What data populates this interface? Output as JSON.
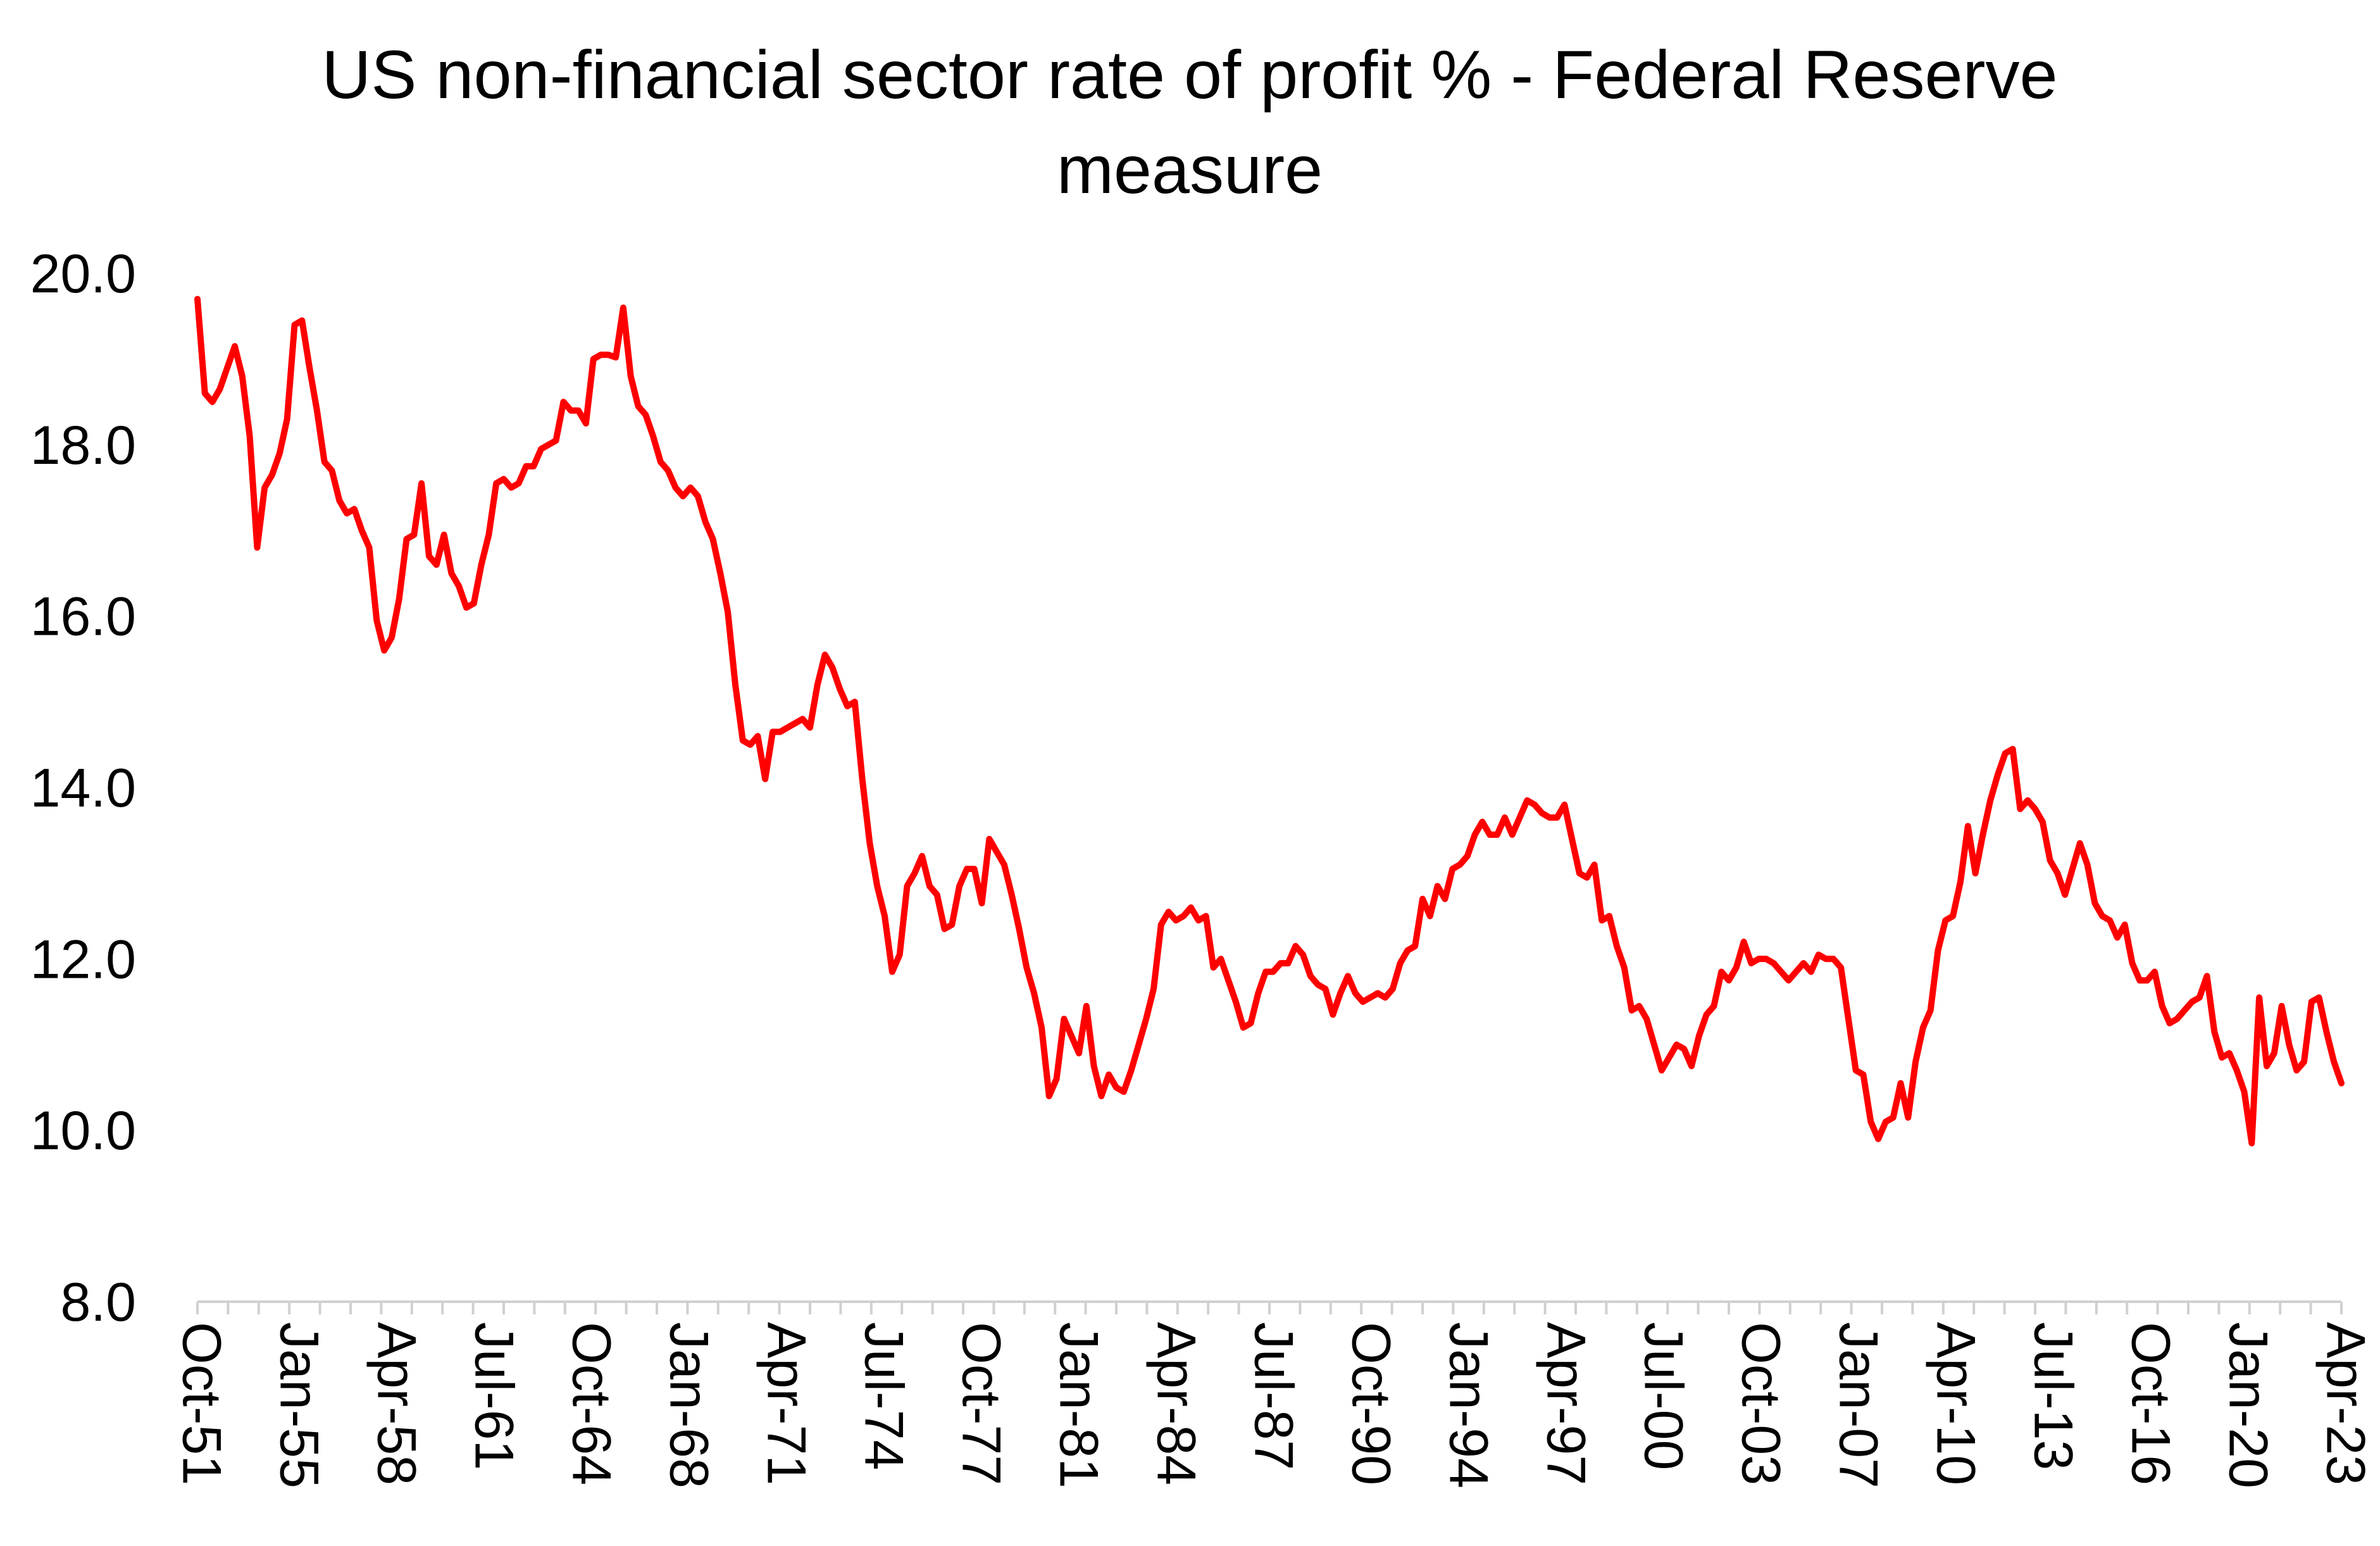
{
  "chart_data": {
    "type": "line",
    "title": "US non-financial sector rate of profit % - Federal Reserve",
    "title_line2": "measure",
    "xlabel": "",
    "ylabel": "",
    "ylim": [
      8.0,
      20.0
    ],
    "yticks": [
      "8.0",
      "10.0",
      "12.0",
      "14.0",
      "16.0",
      "18.0",
      "20.0"
    ],
    "xticks": [
      "Oct-51",
      "Jan-55",
      "Apr-58",
      "Jul-61",
      "Oct-64",
      "Jan-68",
      "Apr-71",
      "Jul-74",
      "Oct-77",
      "Jan-81",
      "Apr-84",
      "Jul-87",
      "Oct-90",
      "Jan-94",
      "Apr-97",
      "Jul-00",
      "Oct-03",
      "Jan-07",
      "Apr-10",
      "Jul-13",
      "Oct-16",
      "Jan-20",
      "Apr-23"
    ],
    "x_start": "Oct-51",
    "x_end": "Apr-23",
    "frequency": "quarterly",
    "grid": false,
    "legend": "none",
    "color": "#ff0000",
    "axis_color": "#d0d0d0",
    "series": [
      {
        "values": [
          19.7,
          18.6,
          18.5,
          18.65,
          18.9,
          19.15,
          18.8,
          18.1,
          16.8,
          17.5,
          17.65,
          17.9,
          18.3,
          19.4,
          19.45,
          18.9,
          18.4,
          17.8,
          17.7,
          17.35,
          17.2,
          17.25,
          17.0,
          16.8,
          15.95,
          15.6,
          15.75,
          16.2,
          16.9,
          16.95,
          17.55,
          16.7,
          16.6,
          16.95,
          16.5,
          16.35,
          16.1,
          16.15,
          16.6,
          16.95,
          17.55,
          17.6,
          17.5,
          17.55,
          17.75,
          17.75,
          17.95,
          18.0,
          18.05,
          18.5,
          18.4,
          18.4,
          18.25,
          19.0,
          19.05,
          19.05,
          19.02,
          19.6,
          18.8,
          18.45,
          18.35,
          18.1,
          17.8,
          17.7,
          17.5,
          17.4,
          17.5,
          17.4,
          17.1,
          16.9,
          16.5,
          16.05,
          15.2,
          14.55,
          14.5,
          14.6,
          14.1,
          14.65,
          14.65,
          14.7,
          14.75,
          14.8,
          14.7,
          15.2,
          15.55,
          15.4,
          15.15,
          14.95,
          15.0,
          14.1,
          13.35,
          12.85,
          12.5,
          11.85,
          12.05,
          12.85,
          13.0,
          13.2,
          12.85,
          12.75,
          12.35,
          12.4,
          12.85,
          13.05,
          13.05,
          12.65,
          13.4,
          13.25,
          13.1,
          12.75,
          12.35,
          11.9,
          11.6,
          11.2,
          10.4,
          10.6,
          11.3,
          11.1,
          10.9,
          11.45,
          10.75,
          10.4,
          10.65,
          10.5,
          10.45,
          10.7,
          11.0,
          11.3,
          11.65,
          12.4,
          12.55,
          12.45,
          12.5,
          12.6,
          12.45,
          12.5,
          11.9,
          12.0,
          11.75,
          11.5,
          11.2,
          11.25,
          11.6,
          11.85,
          11.85,
          11.95,
          11.95,
          12.15,
          12.05,
          11.8,
          11.7,
          11.65,
          11.35,
          11.6,
          11.8,
          11.6,
          11.5,
          11.55,
          11.6,
          11.55,
          11.65,
          11.95,
          12.1,
          12.15,
          12.7,
          12.5,
          12.85,
          12.7,
          13.05,
          13.1,
          13.2,
          13.45,
          13.6,
          13.45,
          13.45,
          13.65,
          13.45,
          13.65,
          13.85,
          13.8,
          13.7,
          13.65,
          13.65,
          13.8,
          13.4,
          13.0,
          12.95,
          13.1,
          12.45,
          12.5,
          12.15,
          11.9,
          11.4,
          11.45,
          11.3,
          11.0,
          10.7,
          10.85,
          11.0,
          10.95,
          10.75,
          11.1,
          11.35,
          11.45,
          11.85,
          11.75,
          11.9,
          12.2,
          11.95,
          12.0,
          12.0,
          11.95,
          11.85,
          11.75,
          11.85,
          11.95,
          11.85,
          12.05,
          12.0,
          12.0,
          11.9,
          11.3,
          10.7,
          10.65,
          10.1,
          9.9,
          10.1,
          10.15,
          10.55,
          10.15,
          10.8,
          11.2,
          11.4,
          12.1,
          12.45,
          12.5,
          12.9,
          13.55,
          13.0,
          13.45,
          13.85,
          14.15,
          14.4,
          14.45,
          13.75,
          13.85,
          13.75,
          13.6,
          13.15,
          13.0,
          12.75,
          13.05,
          13.35,
          13.1,
          12.65,
          12.5,
          12.45,
          12.25,
          12.4,
          11.95,
          11.75,
          11.75,
          11.85,
          11.45,
          11.25,
          11.3,
          11.4,
          11.5,
          11.55,
          11.8,
          11.15,
          10.85,
          10.9,
          10.7,
          10.45,
          9.85,
          11.55,
          10.75,
          10.9,
          11.45,
          11.0,
          10.7,
          10.8,
          11.5,
          11.55,
          11.15,
          10.8,
          10.55
        ]
      }
    ]
  }
}
